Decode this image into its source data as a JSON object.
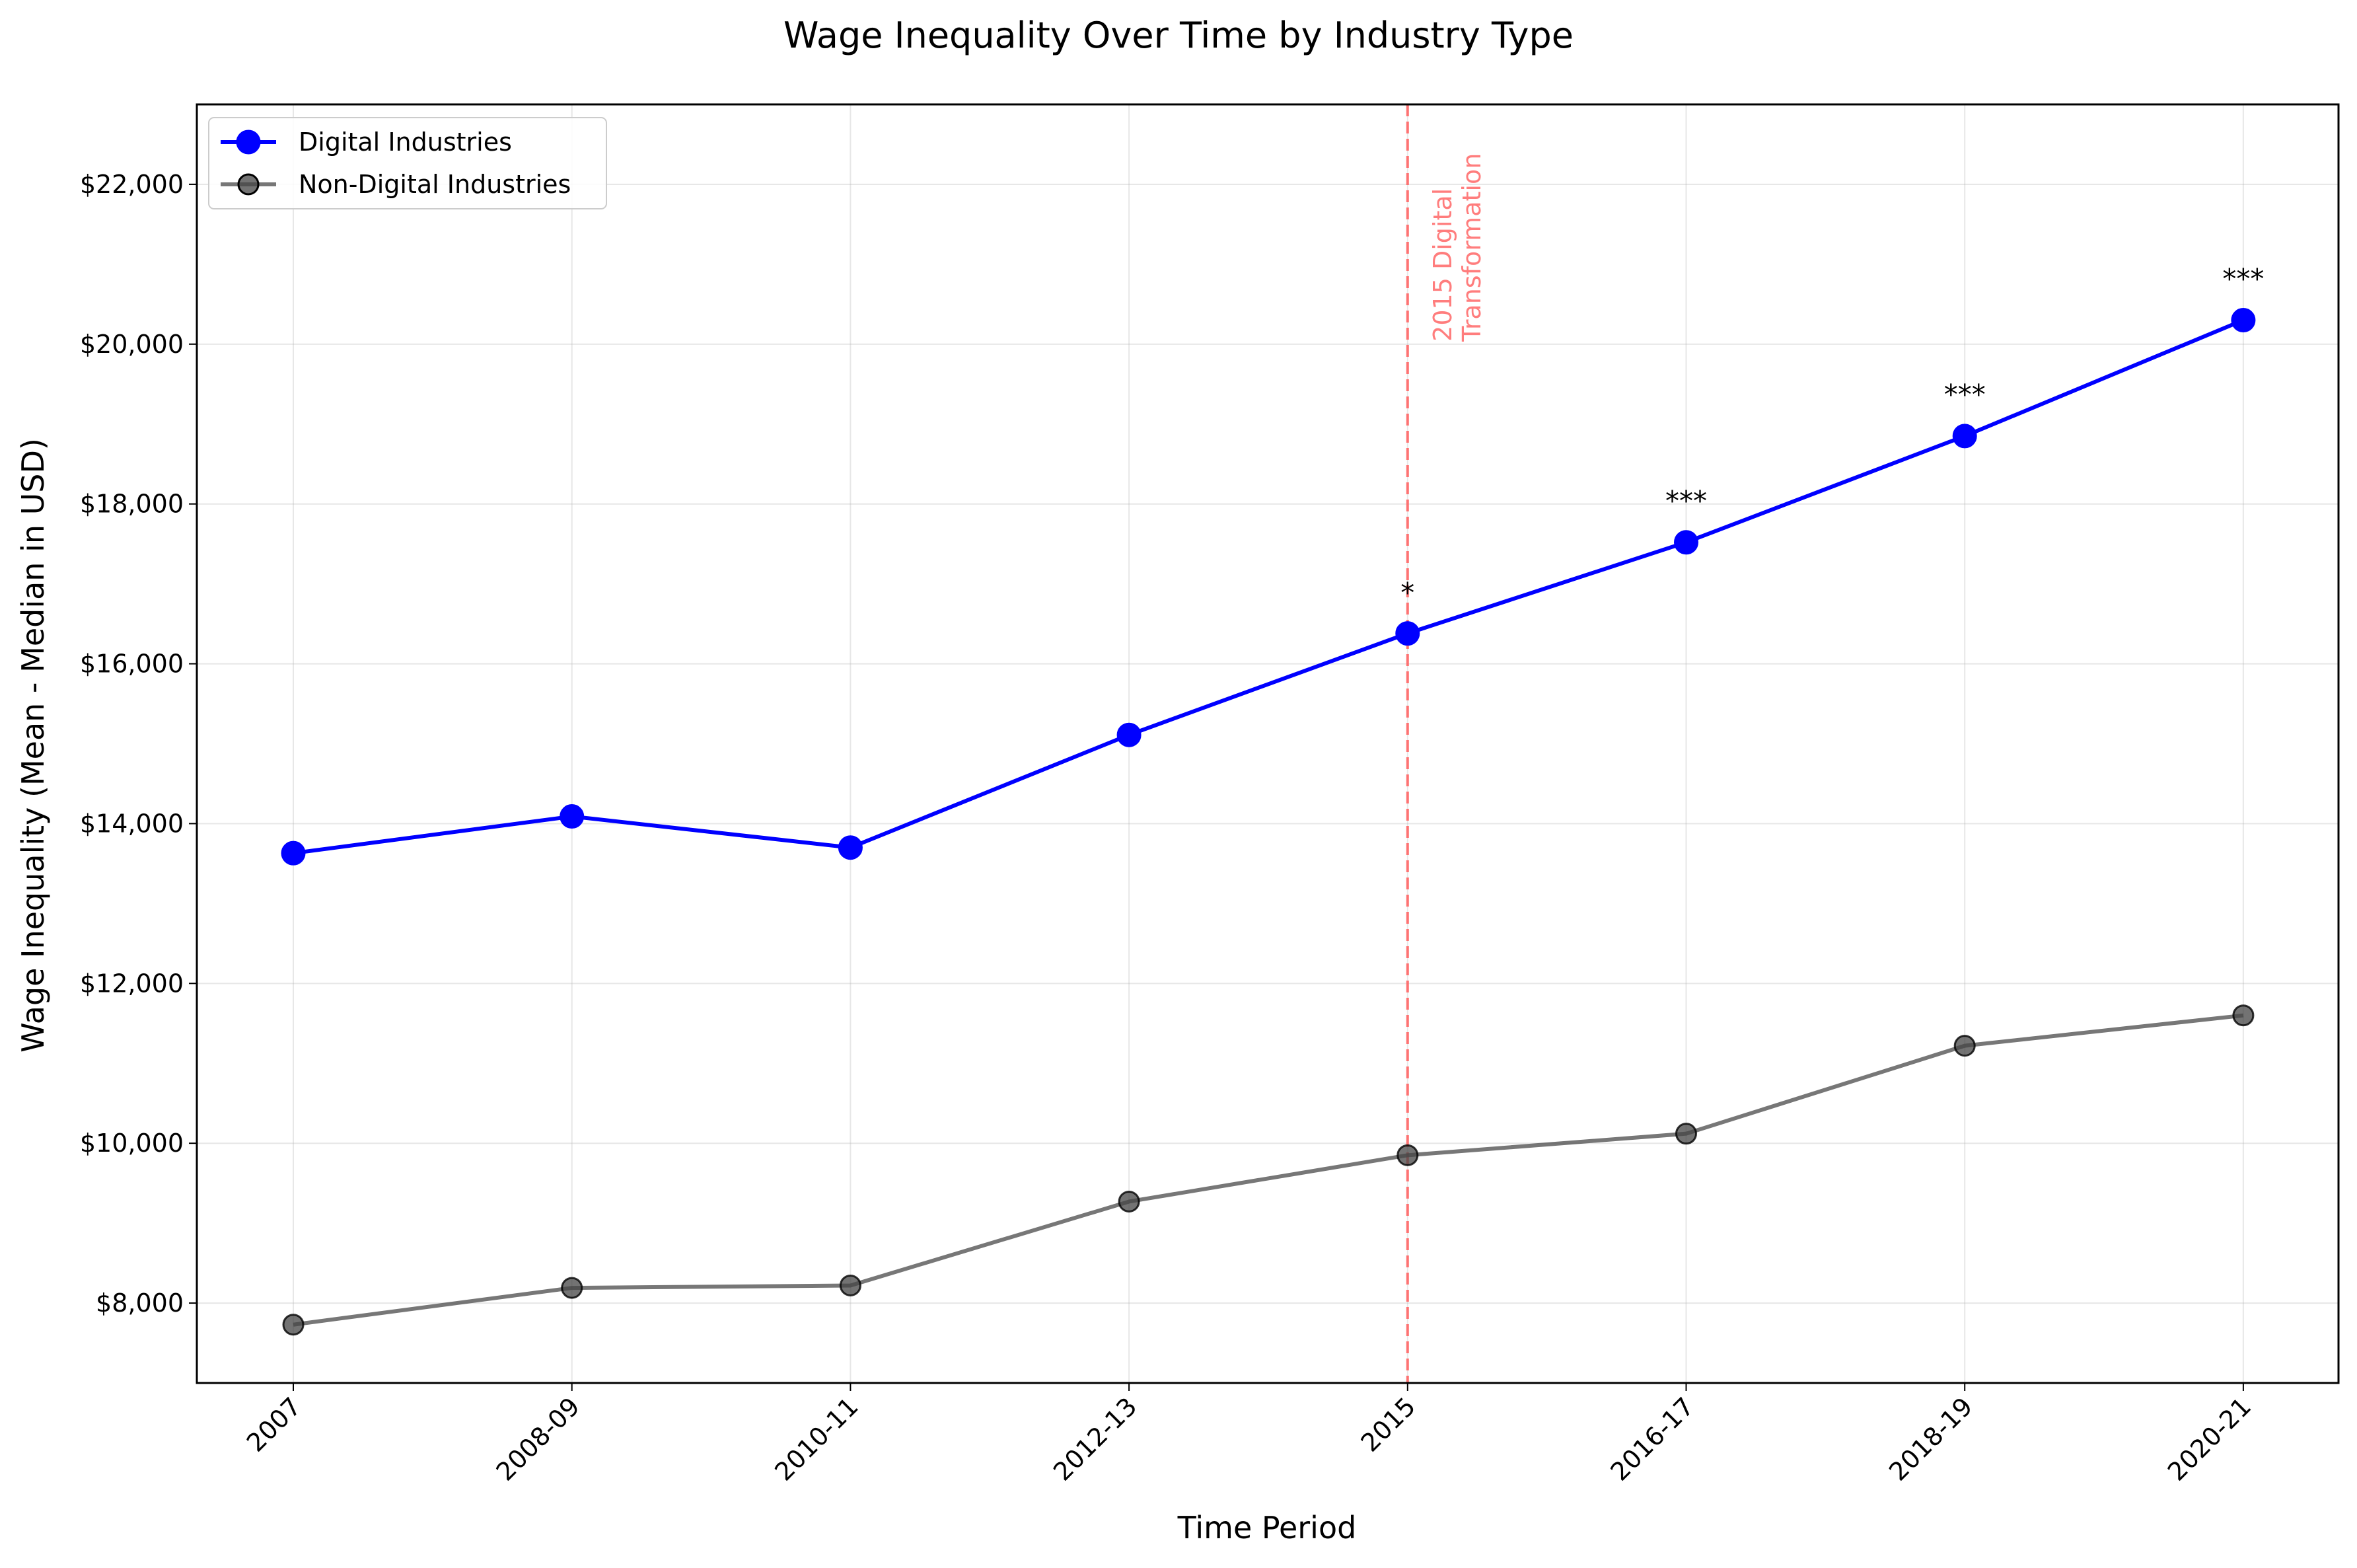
{
  "chart_data": {
    "type": "line",
    "title": "Wage Inequality Over Time by Industry Type",
    "xlabel": "Time Period",
    "ylabel": "Wage Inequality (Mean - Median in USD)",
    "categories": [
      "2007",
      "2008-09",
      "2010-11",
      "2012-13",
      "2015",
      "2016-17",
      "2018-19",
      "2020-21"
    ],
    "ylim": [
      7000,
      23000
    ],
    "yticks": [
      8000,
      10000,
      12000,
      14000,
      16000,
      18000,
      20000,
      22000
    ],
    "ytick_labels": [
      "$8,000",
      "$10,000",
      "$12,000",
      "$14,000",
      "$16,000",
      "$18,000",
      "$20,000",
      "$22,000"
    ],
    "grid": true,
    "legend_position": "top-left",
    "series": [
      {
        "name": "Digital Industries",
        "color": "#0000ff",
        "values": [
          13630,
          14090,
          13700,
          15110,
          16380,
          17520,
          18850,
          20300
        ]
      },
      {
        "name": "Non-Digital Industries",
        "color": "#555555",
        "values": [
          7730,
          8190,
          8220,
          9270,
          9850,
          10120,
          11220,
          11600
        ]
      }
    ],
    "significance_marks": [
      {
        "category": "2015",
        "label": "*",
        "value": 17000
      },
      {
        "category": "2016-17",
        "label": "***",
        "value": 18150
      },
      {
        "category": "2018-19",
        "label": "***",
        "value": 19480
      },
      {
        "category": "2020-21",
        "label": "***",
        "value": 20930
      }
    ],
    "reference_line": {
      "category": "2015",
      "label_lines": [
        "2015 Digital",
        "Transformation"
      ],
      "color": "#ff6666"
    }
  }
}
